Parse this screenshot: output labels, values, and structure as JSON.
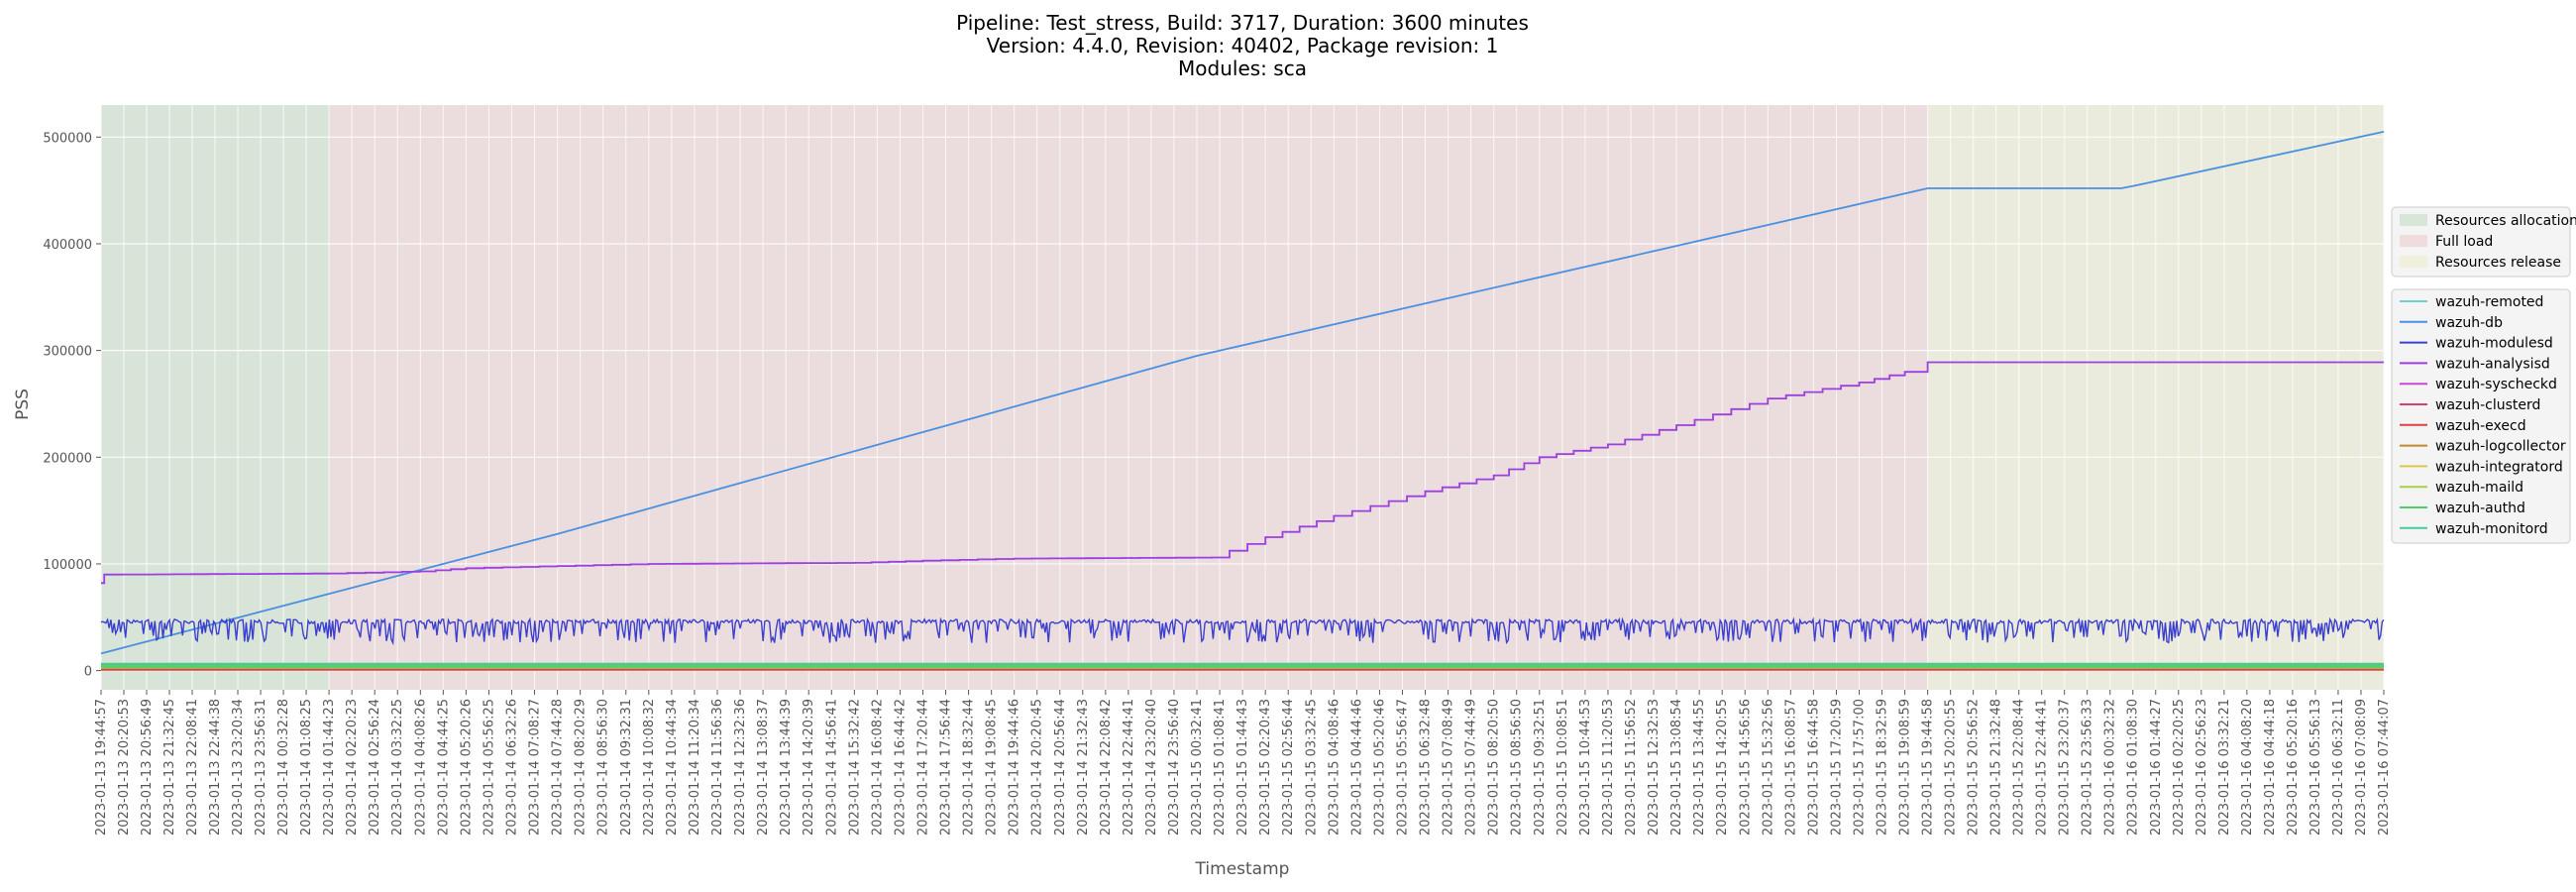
{
  "chart_data": {
    "type": "line",
    "title_lines": [
      "Pipeline: Test_stress, Build: 3717, Duration: 3600 minutes",
      "Version: 4.4.0, Revision: 40402, Package revision: 1",
      "Modules: sca"
    ],
    "xlabel": "Timestamp",
    "ylabel": "PSS",
    "ylim": [
      -18000,
      530000
    ],
    "xlim": [
      "2023-01-13 19:44:57",
      "2023-01-16 07:44:07"
    ],
    "y_ticks": [
      0,
      100000,
      200000,
      300000,
      400000,
      500000
    ],
    "grid": true,
    "background_color": "#ebebeb",
    "x_tick_labels": [
      "2023-01-13 19:44:57",
      "2023-01-13 20:20:53",
      "2023-01-13 20:56:49",
      "2023-01-13 21:32:45",
      "2023-01-13 22:08:41",
      "2023-01-13 22:44:38",
      "2023-01-13 23:20:34",
      "2023-01-13 23:56:31",
      "2023-01-14 00:32:28",
      "2023-01-14 01:08:25",
      "2023-01-14 01:44:23",
      "2023-01-14 02:20:23",
      "2023-01-14 02:56:24",
      "2023-01-14 03:32:25",
      "2023-01-14 04:08:26",
      "2023-01-14 04:44:25",
      "2023-01-14 05:20:26",
      "2023-01-14 05:56:25",
      "2023-01-14 06:32:26",
      "2023-01-14 07:08:27",
      "2023-01-14 07:44:28",
      "2023-01-14 08:20:29",
      "2023-01-14 08:56:30",
      "2023-01-14 09:32:31",
      "2023-01-14 10:08:32",
      "2023-01-14 10:44:34",
      "2023-01-14 11:20:34",
      "2023-01-14 11:56:36",
      "2023-01-14 12:32:36",
      "2023-01-14 13:08:37",
      "2023-01-14 13:44:39",
      "2023-01-14 14:20:39",
      "2023-01-14 14:56:41",
      "2023-01-14 15:32:42",
      "2023-01-14 16:08:42",
      "2023-01-14 16:44:42",
      "2023-01-14 17:20:44",
      "2023-01-14 17:56:44",
      "2023-01-14 18:32:44",
      "2023-01-14 19:08:45",
      "2023-01-14 19:44:46",
      "2023-01-14 20:20:45",
      "2023-01-14 20:56:44",
      "2023-01-14 21:32:43",
      "2023-01-14 22:08:42",
      "2023-01-14 22:44:41",
      "2023-01-14 23:20:40",
      "2023-01-14 23:56:40",
      "2023-01-15 00:32:41",
      "2023-01-15 01:08:41",
      "2023-01-15 01:44:43",
      "2023-01-15 02:20:43",
      "2023-01-15 02:56:44",
      "2023-01-15 03:32:45",
      "2023-01-15 04:08:46",
      "2023-01-15 04:44:46",
      "2023-01-15 05:20:46",
      "2023-01-15 05:56:47",
      "2023-01-15 06:32:48",
      "2023-01-15 07:08:49",
      "2023-01-15 07:44:49",
      "2023-01-15 08:20:50",
      "2023-01-15 08:56:50",
      "2023-01-15 09:32:51",
      "2023-01-15 10:08:51",
      "2023-01-15 10:44:53",
      "2023-01-15 11:20:53",
      "2023-01-15 11:56:52",
      "2023-01-15 12:32:53",
      "2023-01-15 13:08:54",
      "2023-01-15 13:44:55",
      "2023-01-15 14:20:55",
      "2023-01-15 14:56:56",
      "2023-01-15 15:32:56",
      "2023-01-15 16:08:57",
      "2023-01-15 16:44:58",
      "2023-01-15 17:20:59",
      "2023-01-15 17:57:00",
      "2023-01-15 18:32:59",
      "2023-01-15 19:08:59",
      "2023-01-15 19:44:58",
      "2023-01-15 20:20:55",
      "2023-01-15 20:56:52",
      "2023-01-15 21:32:48",
      "2023-01-15 22:08:44",
      "2023-01-15 22:44:41",
      "2023-01-15 23:20:37",
      "2023-01-15 23:56:33",
      "2023-01-16 00:32:32",
      "2023-01-16 01:08:30",
      "2023-01-16 01:44:27",
      "2023-01-16 02:20:25",
      "2023-01-16 02:56:23",
      "2023-01-16 03:32:21",
      "2023-01-16 04:08:20",
      "2023-01-16 04:44:18",
      "2023-01-16 05:20:16",
      "2023-01-16 05:56:13",
      "2023-01-16 06:32:11",
      "2023-01-16 07:08:09",
      "2023-01-16 07:44:07"
    ],
    "phases": [
      {
        "name": "Resources allocation",
        "start": "2023-01-13 19:44:57",
        "end": "2023-01-14 01:44:23",
        "color": "#c4dcc4"
      },
      {
        "name": "Full load",
        "start": "2023-01-14 01:44:23",
        "end": "2023-01-15 19:44:58",
        "color": "#eccccc"
      },
      {
        "name": "Resources release",
        "start": "2023-01-15 19:44:58",
        "end": "2023-01-16 07:44:07",
        "color": "#ececcc"
      }
    ],
    "series": [
      {
        "name": "wazuh-remoted",
        "color": "#6fd1cf",
        "kind": "flat",
        "points": [
          [
            "2023-01-13 19:44:57",
            3000
          ],
          [
            "2023-01-16 07:44:07",
            3000
          ]
        ]
      },
      {
        "name": "wazuh-db",
        "color": "#4a90e2",
        "kind": "line",
        "points": [
          [
            "2023-01-13 19:44:57",
            16000
          ],
          [
            "2023-01-14 07:44:28",
            128000
          ],
          [
            "2023-01-15 00:32:41",
            295000
          ],
          [
            "2023-01-15 19:44:58",
            452000
          ],
          [
            "2023-01-16 00:50:00",
            452000
          ],
          [
            "2023-01-16 01:08:30",
            454000
          ],
          [
            "2023-01-16 07:44:07",
            505000
          ]
        ]
      },
      {
        "name": "wazuh-modulesd",
        "color": "#3b3fcf",
        "kind": "noisy",
        "base": 48000,
        "low": 26000,
        "points": [
          [
            "2023-01-13 19:44:57",
            48000
          ],
          [
            "2023-01-16 07:44:07",
            48000
          ]
        ]
      },
      {
        "name": "wazuh-analysisd",
        "color": "#9b3fe0",
        "kind": "step",
        "points": [
          [
            "2023-01-13 19:44:57",
            82000
          ],
          [
            "2023-01-13 19:50:00",
            90000
          ],
          [
            "2023-01-14 01:44:23",
            91000
          ],
          [
            "2023-01-14 04:08:26",
            93000
          ],
          [
            "2023-01-14 05:20:26",
            96000
          ],
          [
            "2023-01-14 07:44:28",
            98000
          ],
          [
            "2023-01-14 10:08:32",
            100000
          ],
          [
            "2023-01-14 15:32:42",
            101000
          ],
          [
            "2023-01-14 17:20:44",
            103000
          ],
          [
            "2023-01-14 19:44:46",
            105000
          ],
          [
            "2023-01-15 00:56:00",
            106000
          ],
          [
            "2023-01-15 02:20:43",
            125000
          ],
          [
            "2023-01-15 04:08:46",
            145000
          ],
          [
            "2023-01-15 06:32:48",
            168000
          ],
          [
            "2023-01-15 08:20:50",
            183000
          ],
          [
            "2023-01-15 09:32:51",
            200000
          ],
          [
            "2023-01-15 11:20:53",
            212000
          ],
          [
            "2023-01-15 13:08:54",
            230000
          ],
          [
            "2023-01-15 15:32:56",
            255000
          ],
          [
            "2023-01-15 17:57:00",
            270000
          ],
          [
            "2023-01-15 19:08:59",
            280000
          ],
          [
            "2023-01-15 19:44:58",
            289000
          ],
          [
            "2023-01-16 07:44:07",
            289000
          ]
        ]
      },
      {
        "name": "wazuh-syscheckd",
        "color": "#c84ad4",
        "kind": "flat",
        "points": [
          [
            "2023-01-13 19:44:57",
            5500
          ],
          [
            "2023-01-16 07:44:07",
            5500
          ]
        ]
      },
      {
        "name": "wazuh-clusterd",
        "color": "#d6407a",
        "kind": "flat",
        "points": [
          [
            "2023-01-13 19:44:57",
            1000
          ],
          [
            "2023-01-16 07:44:07",
            1000
          ]
        ]
      },
      {
        "name": "wazuh-execd",
        "color": "#e04040",
        "kind": "flat",
        "points": [
          [
            "2023-01-13 19:44:57",
            800
          ],
          [
            "2023-01-16 07:44:07",
            800
          ]
        ]
      },
      {
        "name": "wazuh-logcollector",
        "color": "#c08a30",
        "kind": "flat",
        "points": [
          [
            "2023-01-13 19:44:57",
            3500
          ],
          [
            "2023-01-16 07:44:07",
            3500
          ]
        ]
      },
      {
        "name": "wazuh-integratord",
        "color": "#d9c84a",
        "kind": "flat",
        "points": [
          [
            "2023-01-13 19:44:57",
            2500
          ],
          [
            "2023-01-16 07:44:07",
            2500
          ]
        ]
      },
      {
        "name": "wazuh-maild",
        "color": "#a8d04a",
        "kind": "flat",
        "points": [
          [
            "2023-01-13 19:44:57",
            4500
          ],
          [
            "2023-01-16 07:44:07",
            4500
          ]
        ]
      },
      {
        "name": "wazuh-authd",
        "color": "#4ad06a",
        "kind": "band",
        "low": 2000,
        "high": 7000,
        "points": [
          [
            "2023-01-13 19:44:57",
            4500
          ],
          [
            "2023-01-16 07:44:07",
            4500
          ]
        ]
      },
      {
        "name": "wazuh-monitord",
        "color": "#4ac8a0",
        "kind": "flat",
        "points": [
          [
            "2023-01-13 19:44:57",
            6500
          ],
          [
            "2023-01-16 07:44:07",
            6500
          ]
        ]
      }
    ]
  }
}
